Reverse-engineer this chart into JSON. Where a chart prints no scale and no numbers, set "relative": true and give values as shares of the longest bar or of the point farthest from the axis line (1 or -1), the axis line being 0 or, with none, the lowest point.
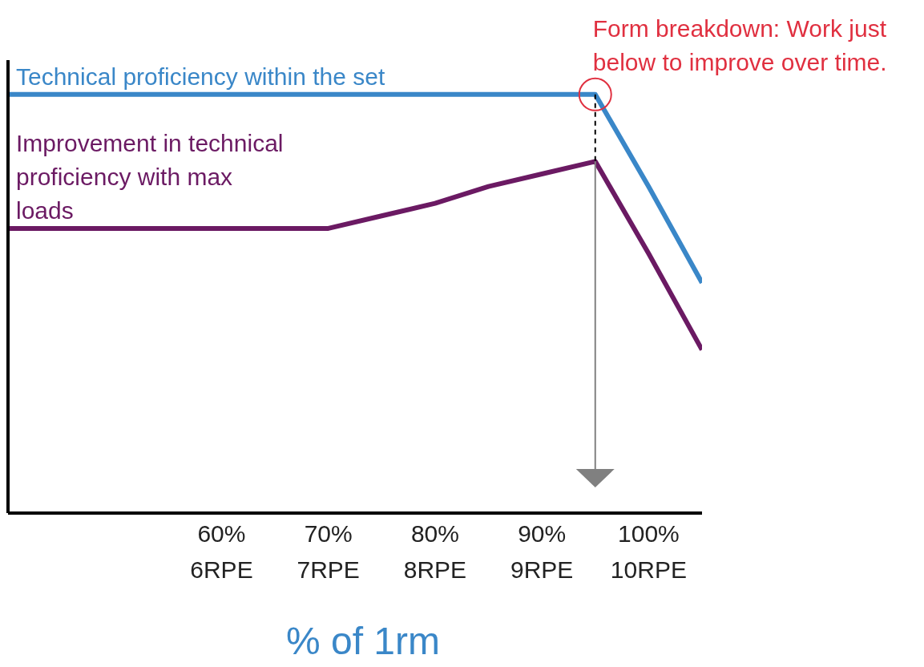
{
  "chart_data": {
    "type": "line",
    "relative": true,
    "xlabel": "% of 1rm",
    "categories": [
      null,
      null,
      null,
      null,
      "60%\n6RPE",
      null,
      "70%\n7RPE",
      null,
      "80%\n8RPE",
      null,
      "90%\n9RPE",
      null,
      "100%\n10RPE",
      null
    ],
    "marker": "none",
    "line_style": "solid",
    "series": [
      {
        "name": "Technical proficiency within the set",
        "color": "#3a87c8",
        "values": [
          1,
          1,
          1,
          1,
          1,
          1,
          1,
          1,
          1,
          1,
          1,
          1,
          0.78,
          0.55
        ]
      },
      {
        "name": "Improvement in technical proficiency with max loads",
        "color": "#6b1a63",
        "values": [
          0.68,
          0.68,
          0.68,
          0.68,
          0.68,
          0.68,
          0.68,
          0.71,
          0.74,
          0.78,
          0.81,
          0.84,
          0.62,
          0.39
        ]
      }
    ],
    "annotations": [
      "Form breakdown: Work just below to improve over time."
    ]
  }
}
